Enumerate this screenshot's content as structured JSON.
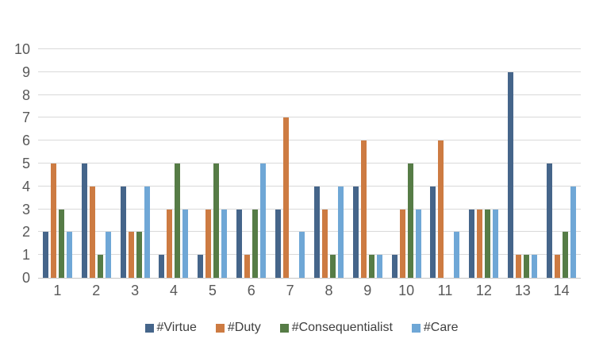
{
  "chart_data": {
    "type": "bar",
    "title": "",
    "xlabel": "",
    "ylabel": "",
    "ylim": [
      0,
      10
    ],
    "grid": true,
    "legend_position": "bottom",
    "y_ticks": [
      0,
      1,
      2,
      3,
      4,
      5,
      6,
      7,
      8,
      9,
      10
    ],
    "categories": [
      "1",
      "2",
      "3",
      "4",
      "5",
      "6",
      "7",
      "8",
      "9",
      "10",
      "11",
      "12",
      "13",
      "14"
    ],
    "series": [
      {
        "name": "#Virtue",
        "color": "#45658A",
        "values": [
          2,
          5,
          4,
          1,
          1,
          3,
          3,
          4,
          4,
          1,
          4,
          3,
          9,
          5
        ]
      },
      {
        "name": "#Duty",
        "color": "#CD7B42",
        "values": [
          5,
          4,
          2,
          3,
          3,
          1,
          7,
          3,
          6,
          3,
          6,
          3,
          1,
          1
        ]
      },
      {
        "name": "#Consequentialist",
        "color": "#567C46",
        "values": [
          3,
          1,
          2,
          5,
          5,
          3,
          0,
          1,
          1,
          5,
          0,
          3,
          1,
          2
        ]
      },
      {
        "name": "#Care",
        "color": "#6FA7D6",
        "values": [
          2,
          2,
          4,
          3,
          3,
          5,
          2,
          4,
          1,
          3,
          2,
          3,
          1,
          4
        ]
      }
    ],
    "colors": {
      "gridline": "#d9d9d9",
      "axis_line": "#c6c6c6",
      "tick_text": "#595959",
      "legend_text": "#404040",
      "background": "#ffffff"
    }
  }
}
